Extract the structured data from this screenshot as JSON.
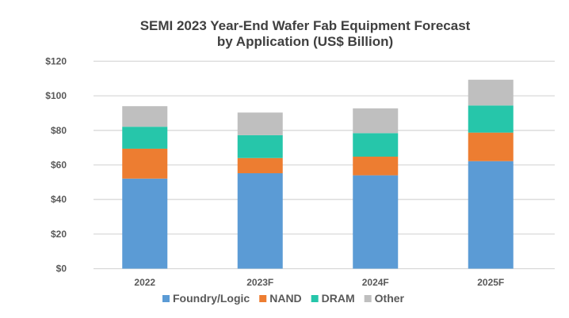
{
  "chart_data": {
    "type": "bar",
    "stacked": true,
    "title": [
      "SEMI 2023 Year-End Wafer Fab Equipment Forecast",
      "by Application (US$ Billion)"
    ],
    "categories": [
      "2022",
      "2023F",
      "2024F",
      "2025F"
    ],
    "series": [
      {
        "name": "Foundry/Logic",
        "color": "#5b9bd5",
        "values": [
          52.1,
          55.2,
          54.0,
          62.2
        ]
      },
      {
        "name": "NAND",
        "color": "#ed7d31",
        "values": [
          17.3,
          8.8,
          10.8,
          16.5
        ]
      },
      {
        "name": "DRAM",
        "color": "#26c6aa",
        "values": [
          12.7,
          13.2,
          13.6,
          15.7
        ]
      },
      {
        "name": "Other",
        "color": "#bfbfbf",
        "values": [
          11.9,
          13.1,
          14.3,
          14.9
        ]
      }
    ],
    "ylim": [
      0,
      120
    ],
    "yticks": [
      0,
      20,
      40,
      60,
      80,
      100,
      120
    ],
    "ytick_labels": [
      "$0",
      "$20",
      "$40",
      "$60",
      "$80",
      "$100",
      "$120"
    ],
    "grid": true,
    "legend": "bottom"
  }
}
